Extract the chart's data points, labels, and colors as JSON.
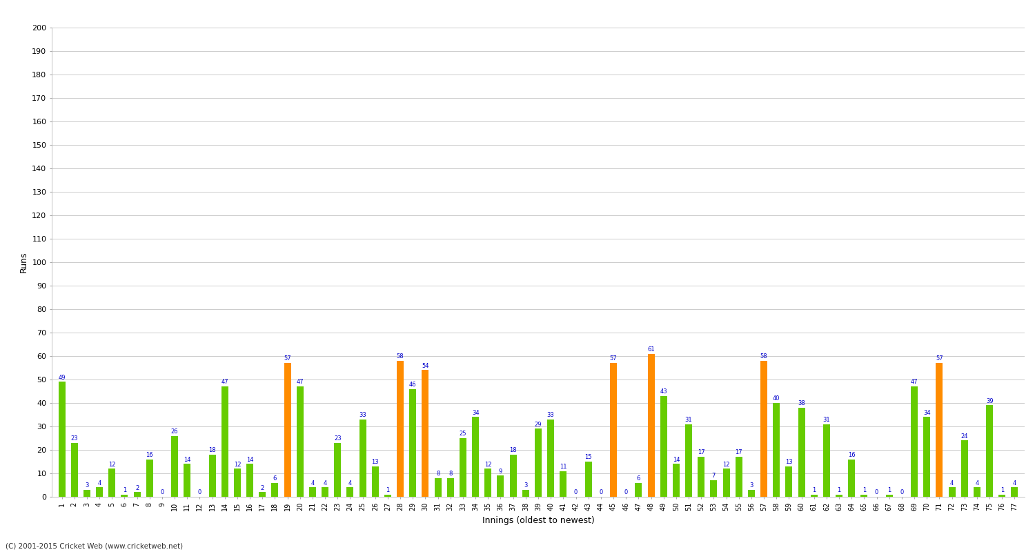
{
  "title": "",
  "xlabel": "Innings (oldest to newest)",
  "ylabel": "Runs",
  "ylim": [
    0,
    200
  ],
  "yticks": [
    0,
    10,
    20,
    30,
    40,
    50,
    60,
    70,
    80,
    90,
    100,
    110,
    120,
    130,
    140,
    150,
    160,
    170,
    180,
    190,
    200
  ],
  "scores": [
    49,
    23,
    3,
    4,
    12,
    1,
    2,
    16,
    0,
    26,
    14,
    0,
    18,
    47,
    12,
    14,
    2,
    6,
    57,
    47,
    4,
    4,
    23,
    4,
    33,
    13,
    1,
    58,
    46,
    54,
    8,
    8,
    25,
    34,
    12,
    9,
    18,
    3,
    29,
    33,
    11,
    0,
    15,
    0,
    57,
    0,
    6,
    61,
    43,
    14,
    31,
    17,
    7,
    12,
    17,
    3,
    58,
    40,
    13,
    38,
    1,
    31,
    1,
    16,
    1,
    0,
    1,
    0,
    47,
    34,
    57,
    4,
    24,
    4,
    39,
    1,
    4
  ],
  "innings_labels": [
    "1",
    "2",
    "3",
    "4",
    "5",
    "6",
    "7",
    "8",
    "9",
    "10",
    "11",
    "12",
    "13",
    "14",
    "15",
    "16",
    "17",
    "18",
    "19",
    "20",
    "21",
    "22",
    "23",
    "24",
    "25",
    "26",
    "27",
    "28",
    "29",
    "30",
    "31",
    "32",
    "33",
    "34",
    "35",
    "36",
    "37",
    "38",
    "39",
    "40",
    "41",
    "42",
    "43",
    "44",
    "45",
    "46",
    "47",
    "48",
    "49",
    "50",
    "51",
    "52",
    "53",
    "54",
    "55",
    "56",
    "57",
    "58",
    "59",
    "60",
    "61",
    "62",
    "63",
    "64",
    "65",
    "66",
    "67",
    "68",
    "69",
    "70",
    "71",
    "72",
    "73",
    "74",
    "75",
    "76",
    "77"
  ],
  "highlight_threshold": 50,
  "bar_color_normal": "#66CC00",
  "bar_color_highlight": "#FF8C00",
  "label_color": "#0000CC",
  "bg_color": "#FFFFFF",
  "grid_color": "#CCCCCC",
  "footer": "(C) 2001-2015 Cricket Web (www.cricketweb.net)"
}
